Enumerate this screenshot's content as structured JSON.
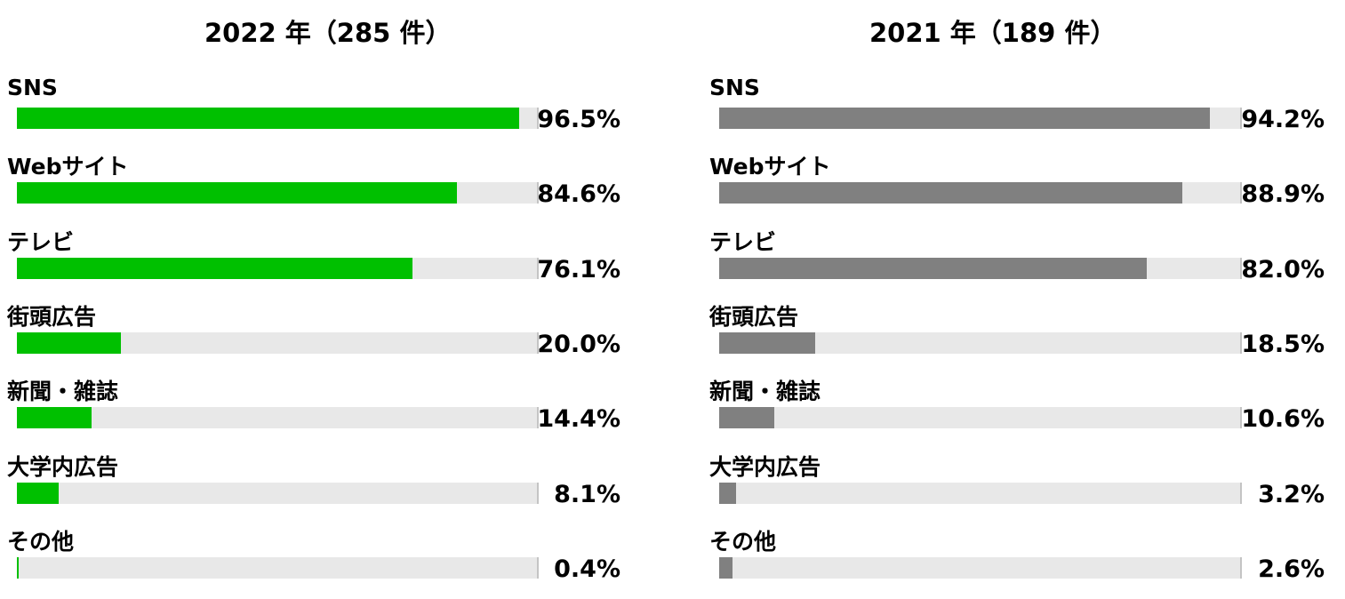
{
  "chart_data": [
    {
      "type": "bar",
      "title": "2022 年（285 件）",
      "categories": [
        "SNS",
        "Webサイト",
        "テレビ",
        "街頭広告",
        "新聞・雑誌",
        "大学内広告",
        "その他"
      ],
      "values": [
        96.5,
        84.6,
        76.1,
        20.0,
        14.4,
        8.1,
        0.4
      ],
      "value_labels": [
        "96.5%",
        "84.6%",
        "76.1%",
        "20.0%",
        "14.4%",
        "8.1%",
        "0.4%"
      ],
      "xlim": [
        0,
        100
      ],
      "color": "#00c000"
    },
    {
      "type": "bar",
      "title": "2021 年（189 件）",
      "categories": [
        "SNS",
        "Webサイト",
        "テレビ",
        "街頭広告",
        "新聞・雑誌",
        "大学内広告",
        "その他"
      ],
      "values": [
        94.2,
        88.9,
        82.0,
        18.5,
        10.6,
        3.2,
        2.6
      ],
      "value_labels": [
        "94.2%",
        "88.9%",
        "82.0%",
        "18.5%",
        "10.6%",
        "3.2%",
        "2.6%"
      ],
      "xlim": [
        0,
        100
      ],
      "color": "#808080"
    }
  ]
}
